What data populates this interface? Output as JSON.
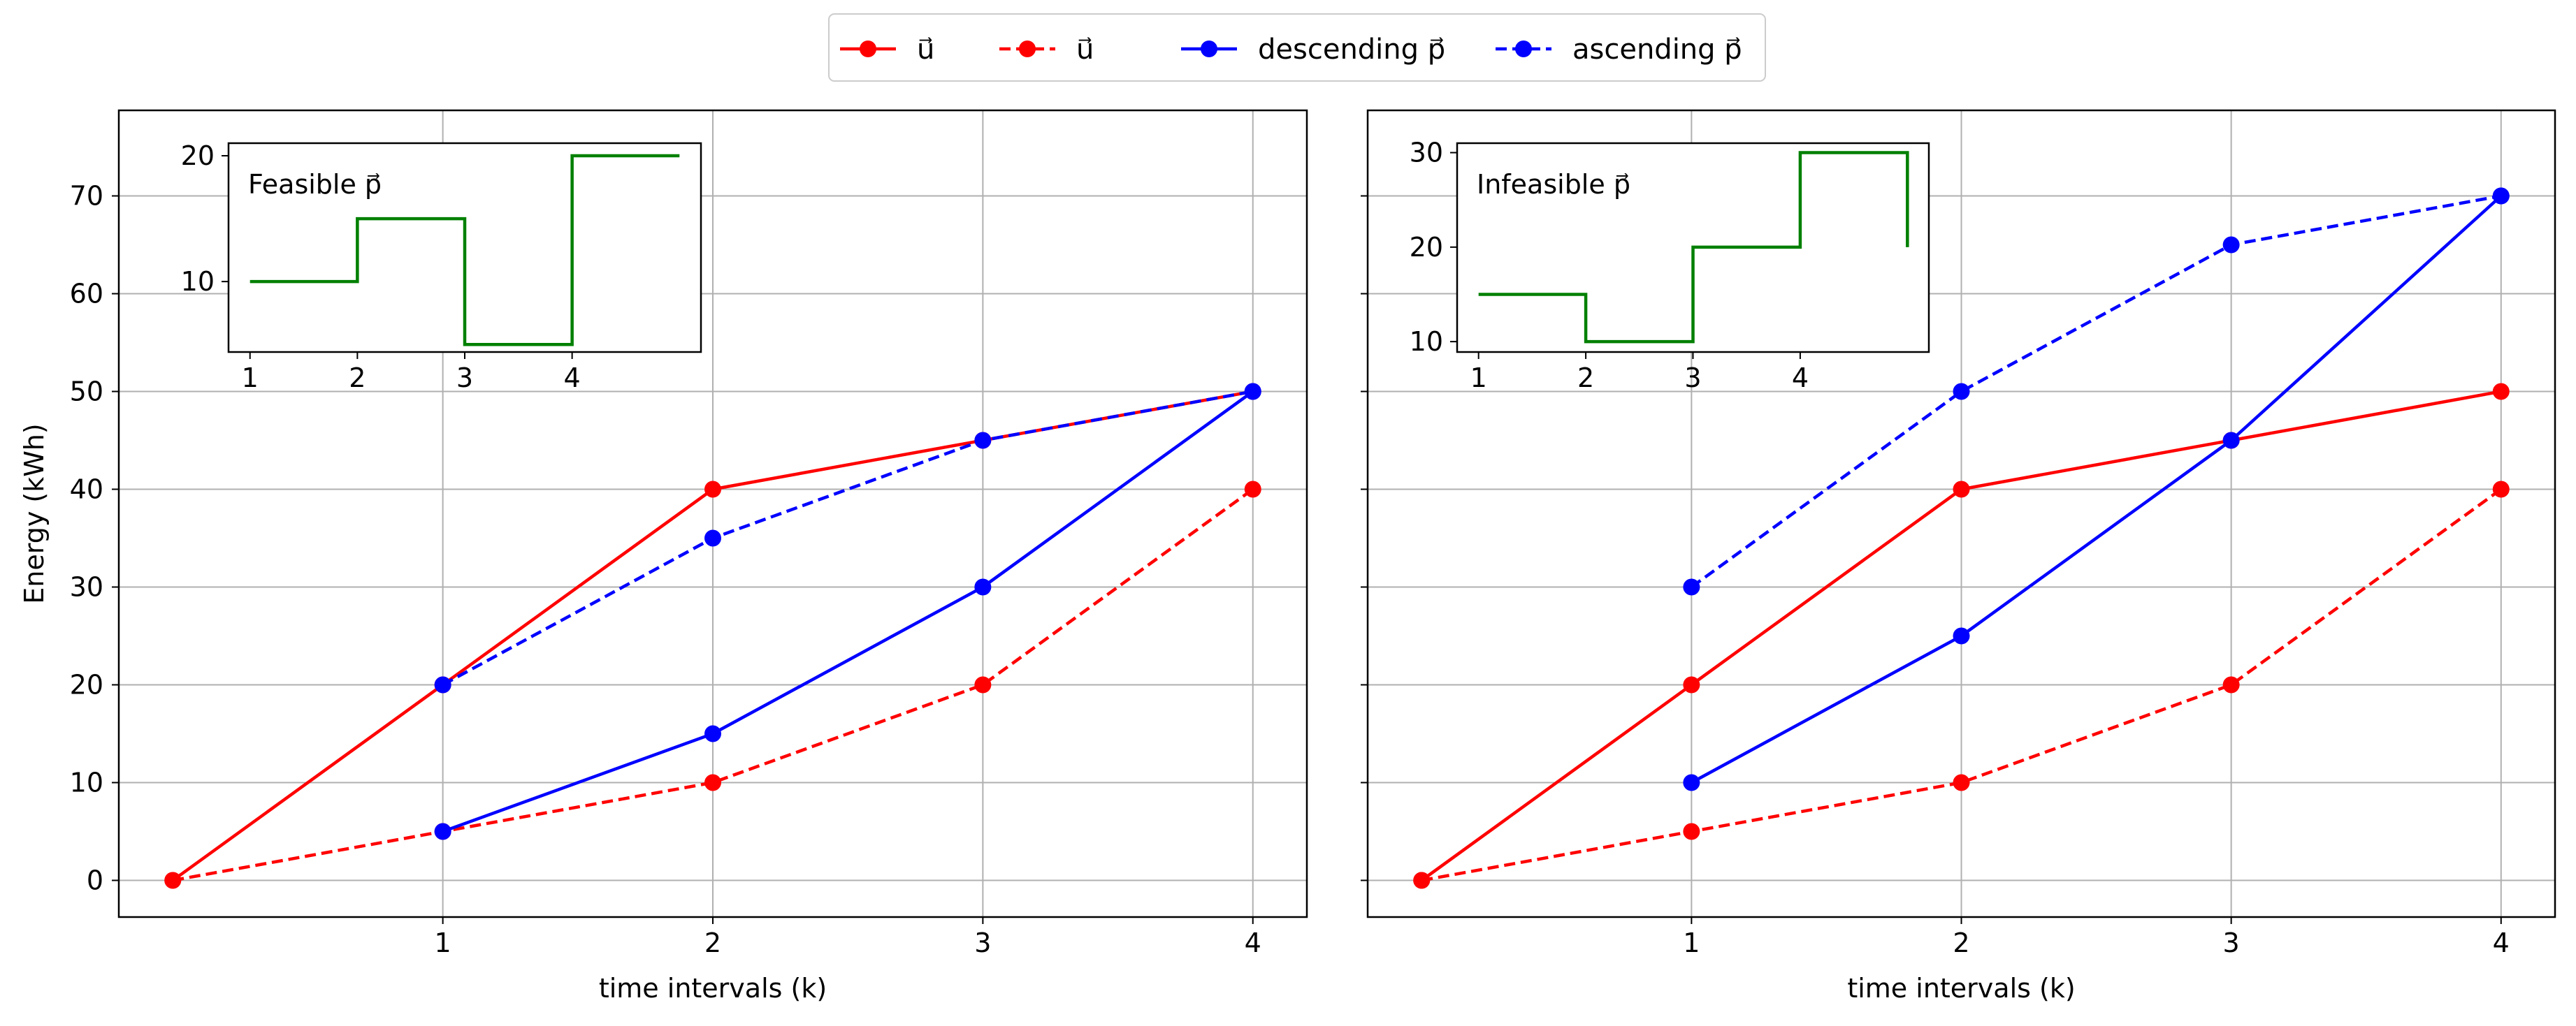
{
  "legend": [
    {
      "label": "u⃗",
      "color": "#ff0000",
      "dash": false
    },
    {
      "label": "u⃗",
      "color": "#ff0000",
      "dash": true
    },
    {
      "label": "descending p⃗",
      "color": "#0000ff",
      "dash": false
    },
    {
      "label": "ascending p⃗",
      "color": "#0000ff",
      "dash": true
    }
  ],
  "colors": {
    "red": "#ff0000",
    "blue": "#0000ff",
    "green": "#008000",
    "grid": "#b0b0b0"
  },
  "chart_data": [
    {
      "type": "line",
      "xlabel": "time intervals (k)",
      "ylabel": "Energy (kWh)",
      "xlim": [
        -0.2,
        4.2
      ],
      "ylim": [
        -3.75,
        78.75
      ],
      "xticks": [
        1,
        2,
        3,
        4
      ],
      "yticks": [
        0,
        10,
        20,
        30,
        40,
        50,
        60,
        70
      ],
      "grid": true,
      "series": [
        {
          "color": "#ff0000",
          "dash": false,
          "x": [
            0,
            1,
            2,
            3,
            4
          ],
          "y": [
            0,
            20,
            40,
            45,
            50
          ]
        },
        {
          "color": "#ff0000",
          "dash": true,
          "x": [
            0,
            1,
            2,
            3,
            4
          ],
          "y": [
            0,
            5,
            10,
            20,
            40
          ]
        },
        {
          "color": "#0000ff",
          "dash": false,
          "x": [
            1,
            2,
            3,
            4
          ],
          "y": [
            5,
            15,
            30,
            50
          ]
        },
        {
          "color": "#0000ff",
          "dash": true,
          "x": [
            1,
            2,
            3,
            4
          ],
          "y": [
            20,
            35,
            45,
            50
          ]
        }
      ],
      "inset": {
        "title": "Feasible p⃗",
        "type": "step",
        "color": "#008000",
        "xlim": [
          0.8,
          5.2
        ],
        "ylim": [
          4.4,
          21.0
        ],
        "xticks": [
          1,
          2,
          3,
          4
        ],
        "yticks": [
          10,
          20
        ],
        "x": [
          1,
          2,
          3,
          4,
          5
        ],
        "y": [
          10,
          15,
          5,
          20,
          20
        ]
      }
    },
    {
      "type": "line",
      "xlabel": "time intervals (k)",
      "ylabel": "",
      "xlim": [
        -0.2,
        4.2
      ],
      "ylim": [
        -3.75,
        78.75
      ],
      "xticks": [
        1,
        2,
        3,
        4
      ],
      "yticks": [
        0,
        10,
        20,
        30,
        40,
        50,
        60,
        70
      ],
      "grid": true,
      "series": [
        {
          "color": "#ff0000",
          "dash": false,
          "x": [
            0,
            1,
            2,
            3,
            4
          ],
          "y": [
            0,
            20,
            40,
            45,
            50
          ]
        },
        {
          "color": "#ff0000",
          "dash": true,
          "x": [
            0,
            1,
            2,
            3,
            4
          ],
          "y": [
            0,
            5,
            10,
            20,
            40
          ]
        },
        {
          "color": "#0000ff",
          "dash": false,
          "x": [
            1,
            2,
            3,
            4
          ],
          "y": [
            10,
            25,
            45,
            70
          ]
        },
        {
          "color": "#0000ff",
          "dash": true,
          "x": [
            1,
            2,
            3,
            4
          ],
          "y": [
            30,
            50,
            65,
            70
          ]
        }
      ],
      "inset": {
        "title": "Infeasible p⃗",
        "type": "step",
        "color": "#008000",
        "xlim": [
          0.8,
          5.2
        ],
        "ylim": [
          8.9,
          31.0
        ],
        "xticks": [
          1,
          2,
          3,
          4
        ],
        "yticks": [
          10,
          20,
          30
        ],
        "x": [
          1,
          2,
          3,
          4,
          5
        ],
        "y": [
          15,
          10,
          20,
          30,
          20
        ]
      }
    }
  ]
}
